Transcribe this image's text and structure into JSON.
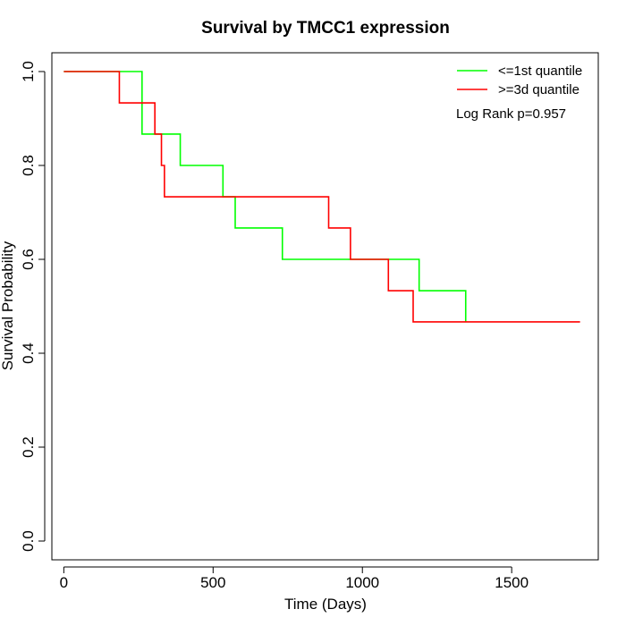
{
  "chart_data": {
    "type": "line",
    "title": "Survival by TMCC1 expression",
    "xlabel": "Time (Days)",
    "ylabel": "Survival Probability",
    "xlim": [
      -40,
      1790
    ],
    "ylim": [
      -0.04,
      1.04
    ],
    "xticks": [
      0,
      500,
      1000,
      1500
    ],
    "yticks": [
      0.0,
      0.2,
      0.4,
      0.6,
      0.8,
      1.0
    ],
    "ytick_labels": [
      "0.0",
      "0.2",
      "0.4",
      "0.6",
      "0.8",
      "1.0"
    ],
    "grid": false,
    "legend_position": "top-right",
    "annotation": "Log Rank p=0.957",
    "series": [
      {
        "name": "<=1st quantile",
        "color": "#00ff00",
        "step": true,
        "x": [
          0,
          255,
          262,
          390,
          533,
          574,
          732,
          1190,
          1346
        ],
        "y": [
          1.0,
          1.0,
          0.8667,
          0.8,
          0.7333,
          0.6667,
          0.6,
          0.5333,
          0.4667
        ]
      },
      {
        "name": ">=3d quantile",
        "color": "#ff0000",
        "step": true,
        "x": [
          0,
          186,
          305,
          327,
          337,
          887,
          960,
          1087,
          1170,
          1729
        ],
        "y": [
          1.0,
          0.9333,
          0.8667,
          0.8,
          0.7333,
          0.6667,
          0.6,
          0.5333,
          0.4667,
          0.4667
        ]
      }
    ]
  }
}
